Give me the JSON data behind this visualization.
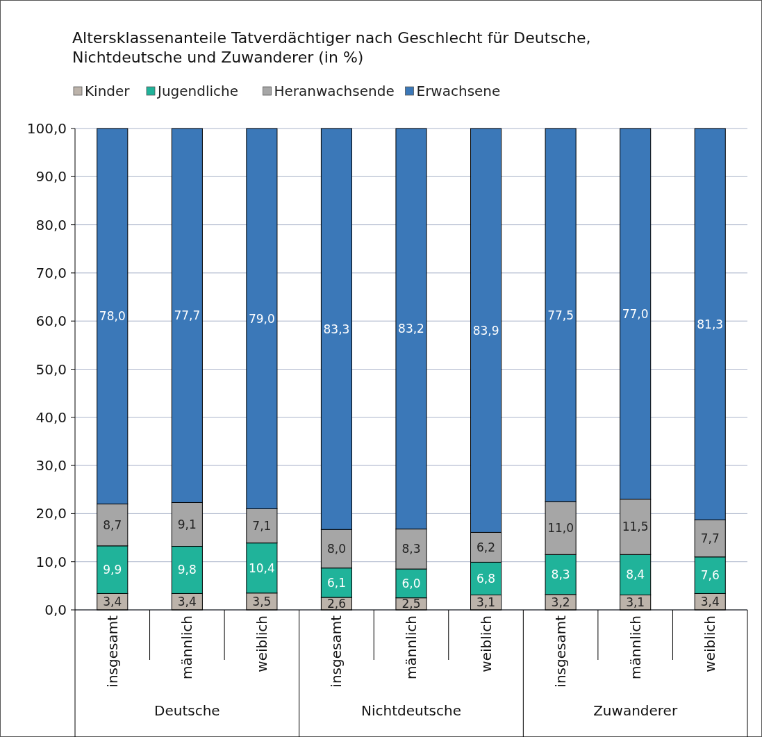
{
  "chart_data": {
    "type": "bar",
    "stacked": true,
    "title": "Altersklassenanteile Tatverdächtiger nach Geschlecht für Deutsche, Nichtdeutsche und Zuwanderer (in %)",
    "categories": [
      "insgesamt",
      "männlich",
      "weiblich",
      "insgesamt",
      "männlich",
      "weiblich",
      "insgesamt",
      "männlich",
      "weiblich"
    ],
    "annotations": [
      "Deutsche",
      "Nichtdeutsche",
      "Zuwanderer"
    ],
    "series": [
      {
        "name": "Kinder",
        "color": "#bcb3aa",
        "values": [
          3.4,
          3.4,
          3.5,
          2.6,
          2.5,
          3.1,
          3.2,
          3.1,
          3.4
        ],
        "value_labels": [
          "3,4",
          "3,4",
          "3,5",
          "2,6",
          "2,5",
          "3,1",
          "3,2",
          "3,1",
          "3,4"
        ]
      },
      {
        "name": "Jugendliche",
        "color": "#20b39a",
        "values": [
          9.9,
          9.8,
          10.4,
          6.1,
          6.0,
          6.8,
          8.3,
          8.4,
          7.6
        ],
        "value_labels": [
          "9,9",
          "9,8",
          "10,4",
          "6,1",
          "6,0",
          "6,8",
          "8,3",
          "8,4",
          "7,6"
        ]
      },
      {
        "name": "Heranwachsende",
        "color": "#a6a6a6",
        "values": [
          8.7,
          9.1,
          7.1,
          8.0,
          8.3,
          6.2,
          11.0,
          11.5,
          7.7
        ],
        "value_labels": [
          "8,7",
          "9,1",
          "7,1",
          "8,0",
          "8,3",
          "6,2",
          "11,0",
          "11,5",
          "7,7"
        ]
      },
      {
        "name": "Erwachsene",
        "color": "#3b78b8",
        "values": [
          78.0,
          77.7,
          79.0,
          83.3,
          83.2,
          83.9,
          77.5,
          77.0,
          81.3
        ],
        "value_labels": [
          "78,0",
          "77,7",
          "79,0",
          "83,3",
          "83,2",
          "83,9",
          "77,5",
          "77,0",
          "81,3"
        ]
      }
    ],
    "ylim": [
      0,
      100
    ],
    "yticks": [
      {
        "value": 0,
        "label": "0,0"
      },
      {
        "value": 10,
        "label": "10,0"
      },
      {
        "value": 20,
        "label": "20,0"
      },
      {
        "value": 30,
        "label": "30,0"
      },
      {
        "value": 40,
        "label": "40,0"
      },
      {
        "value": 50,
        "label": "50,0"
      },
      {
        "value": 60,
        "label": "60,0"
      },
      {
        "value": 70,
        "label": "70,0"
      },
      {
        "value": 80,
        "label": "80,0"
      },
      {
        "value": 90,
        "label": "90,0"
      },
      {
        "value": 100,
        "label": "100,0"
      }
    ],
    "grid": "y",
    "legend": "top left"
  }
}
